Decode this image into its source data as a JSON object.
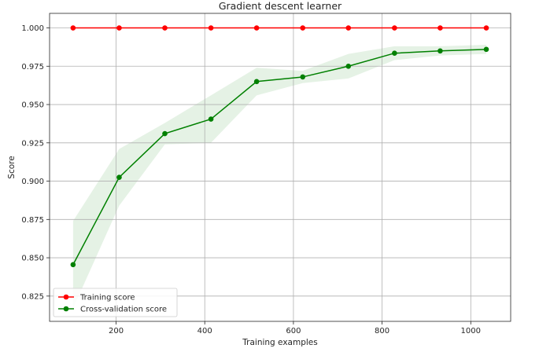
{
  "chart_data": {
    "type": "line",
    "title": "Gradient descent learner",
    "xlabel": "Training examples",
    "ylabel": "Score",
    "xlim": [
      50,
      1090
    ],
    "ylim": [
      0.8085,
      1.0095
    ],
    "xticks": [
      200,
      400,
      600,
      800,
      1000
    ],
    "xtick_labels": [
      "200",
      "400",
      "600",
      "800",
      "1000"
    ],
    "yticks": [
      0.825,
      0.85,
      0.875,
      0.9,
      0.925,
      0.95,
      0.975,
      1.0
    ],
    "ytick_labels": [
      "0.825",
      "0.850",
      "0.875",
      "0.900",
      "0.925",
      "0.950",
      "0.975",
      "1.000"
    ],
    "grid": true,
    "legend_position": "lower-left",
    "x": [
      103,
      207,
      310,
      414,
      517,
      621,
      724,
      828,
      931,
      1035
    ],
    "series": [
      {
        "name": "Training score",
        "color": "#ff0000",
        "marker": "circle",
        "values": [
          1.0,
          1.0,
          1.0,
          1.0,
          1.0,
          1.0,
          1.0,
          1.0,
          1.0,
          1.0
        ],
        "band_lower": [
          1.0,
          1.0,
          1.0,
          1.0,
          1.0,
          1.0,
          1.0,
          1.0,
          1.0,
          1.0
        ],
        "band_upper": [
          1.0,
          1.0,
          1.0,
          1.0,
          1.0,
          1.0,
          1.0,
          1.0,
          1.0,
          1.0
        ]
      },
      {
        "name": "Cross-validation score",
        "color": "#008000",
        "marker": "circle",
        "values": [
          0.8455,
          0.9025,
          0.931,
          0.9405,
          0.965,
          0.968,
          0.975,
          0.9835,
          0.985,
          0.986
        ],
        "band_lower": [
          0.817,
          0.884,
          0.924,
          0.925,
          0.956,
          0.964,
          0.967,
          0.979,
          0.982,
          0.983
        ],
        "band_upper": [
          0.874,
          0.921,
          0.938,
          0.956,
          0.974,
          0.972,
          0.983,
          0.988,
          0.988,
          0.989
        ]
      }
    ]
  }
}
